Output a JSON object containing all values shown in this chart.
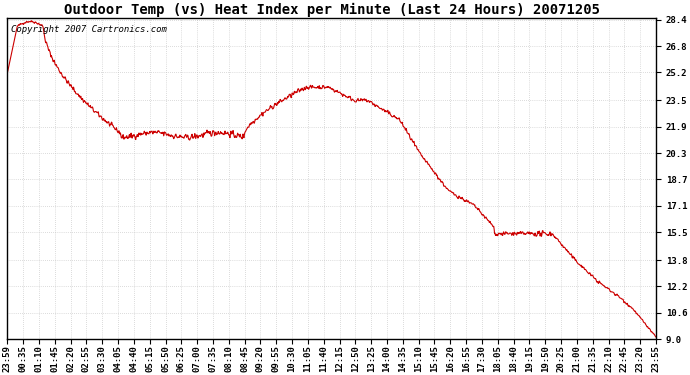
{
  "title": "Outdoor Temp (vs) Heat Index per Minute (Last 24 Hours) 20071205",
  "copyright_text": "Copyright 2007 Cartronics.com",
  "line_color": "#cc0000",
  "background_color": "#ffffff",
  "plot_bg_color": "#ffffff",
  "grid_color": "#bbbbbb",
  "yticks": [
    9.0,
    10.6,
    12.2,
    13.8,
    15.5,
    17.1,
    18.7,
    20.3,
    21.9,
    23.5,
    25.2,
    26.8,
    28.4
  ],
  "ymin": 9.0,
  "ymax": 28.4,
  "xtick_labels": [
    "23:59",
    "00:35",
    "01:10",
    "01:45",
    "02:20",
    "02:55",
    "03:30",
    "04:05",
    "04:40",
    "05:15",
    "05:50",
    "06:25",
    "07:00",
    "07:35",
    "08:10",
    "08:45",
    "09:20",
    "09:55",
    "10:30",
    "11:05",
    "11:40",
    "12:15",
    "12:50",
    "13:25",
    "14:00",
    "14:35",
    "15:10",
    "15:45",
    "16:20",
    "16:55",
    "17:30",
    "18:05",
    "18:40",
    "19:15",
    "19:50",
    "20:25",
    "21:00",
    "21:35",
    "22:10",
    "22:45",
    "23:20",
    "23:55"
  ],
  "title_fontsize": 10,
  "copyright_fontsize": 6.5,
  "tick_fontsize": 6.5,
  "figwidth": 6.9,
  "figheight": 3.75,
  "dpi": 100
}
